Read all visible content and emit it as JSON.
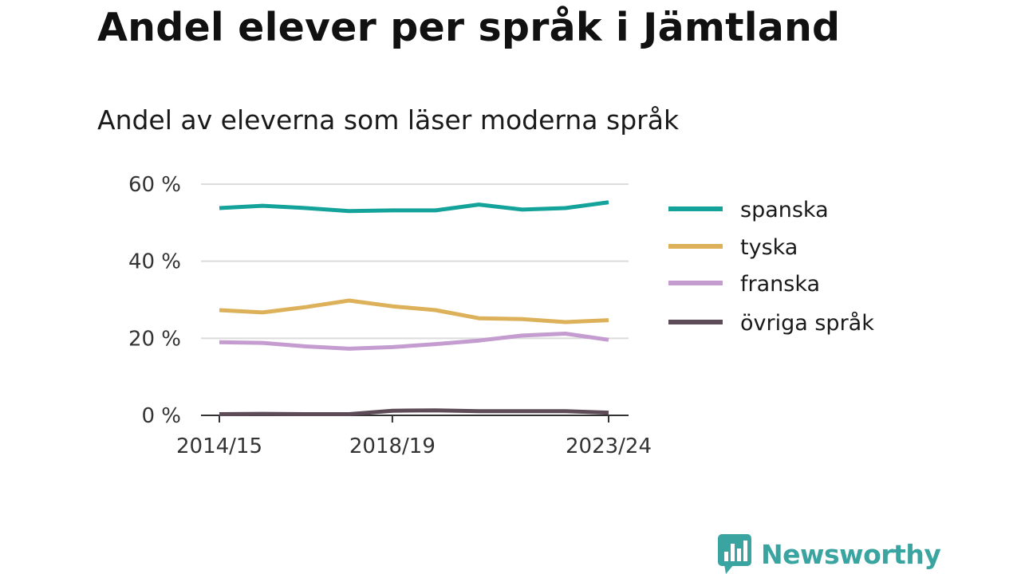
{
  "title": "Andel elever per språk i Jämtland",
  "subtitle": "Andel av eleverna som läser moderna språk",
  "brand": "Newsworthy",
  "colors": {
    "spanska": "#14a39a",
    "tyska": "#dcb15a",
    "franska": "#c49ccf",
    "ovriga": "#5d4c57",
    "grid": "#dcdcdc",
    "axis": "#333333",
    "brand": "#3aa5a0"
  },
  "chart_data": {
    "type": "line",
    "x": [
      "2014/15",
      "2015/16",
      "2016/17",
      "2017/18",
      "2018/19",
      "2019/20",
      "2020/21",
      "2021/22",
      "2022/23",
      "2023/24"
    ],
    "xtick_labels": [
      "2014/15",
      "2018/19",
      "2023/24"
    ],
    "ytick_labels": [
      "0 %",
      "20 %",
      "40 %",
      "60 %"
    ],
    "ytick_values": [
      0,
      20,
      40,
      60
    ],
    "ylim": [
      0,
      60
    ],
    "grid": true,
    "legend_position": "right",
    "series": [
      {
        "name": "spanska",
        "color": "#14a39a",
        "values": [
          53.8,
          54.4,
          53.8,
          53.0,
          53.2,
          53.2,
          54.7,
          53.4,
          53.8,
          55.3
        ]
      },
      {
        "name": "tyska",
        "color": "#dcb15a",
        "values": [
          27.3,
          26.7,
          28.1,
          29.8,
          28.3,
          27.3,
          25.2,
          25.0,
          24.2,
          24.7
        ]
      },
      {
        "name": "franska",
        "color": "#c49ccf",
        "values": [
          19.0,
          18.8,
          17.9,
          17.3,
          17.7,
          18.5,
          19.4,
          20.7,
          21.2,
          19.6
        ]
      },
      {
        "name": "övriga språk",
        "color": "#5d4c57",
        "values": [
          0.3,
          0.4,
          0.3,
          0.3,
          1.2,
          1.3,
          1.1,
          1.1,
          1.1,
          0.7
        ]
      }
    ]
  }
}
